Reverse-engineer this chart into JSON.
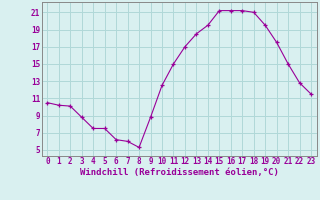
{
  "x": [
    0,
    1,
    2,
    3,
    4,
    5,
    6,
    7,
    8,
    9,
    10,
    11,
    12,
    13,
    14,
    15,
    16,
    17,
    18,
    19,
    20,
    21,
    22,
    23
  ],
  "y": [
    10.5,
    10.2,
    10.1,
    8.8,
    7.5,
    7.5,
    6.2,
    6.0,
    5.3,
    8.8,
    12.5,
    15.0,
    17.0,
    18.5,
    19.5,
    21.2,
    21.2,
    21.2,
    21.0,
    19.5,
    17.5,
    15.0,
    12.8,
    11.5
  ],
  "line_color": "#990099",
  "marker": "+",
  "bg_color": "#d9f0f0",
  "grid_color": "#b0d8d8",
  "xlabel": "Windchill (Refroidissement éolien,°C)",
  "ylabel_ticks": [
    5,
    7,
    9,
    11,
    13,
    15,
    17,
    19,
    21
  ],
  "xlim": [
    -0.5,
    23.5
  ],
  "ylim": [
    4.3,
    22.2
  ],
  "xticks": [
    0,
    1,
    2,
    3,
    4,
    5,
    6,
    7,
    8,
    9,
    10,
    11,
    12,
    13,
    14,
    15,
    16,
    17,
    18,
    19,
    20,
    21,
    22,
    23
  ],
  "tick_fontsize": 5.5,
  "label_fontsize": 6.5
}
